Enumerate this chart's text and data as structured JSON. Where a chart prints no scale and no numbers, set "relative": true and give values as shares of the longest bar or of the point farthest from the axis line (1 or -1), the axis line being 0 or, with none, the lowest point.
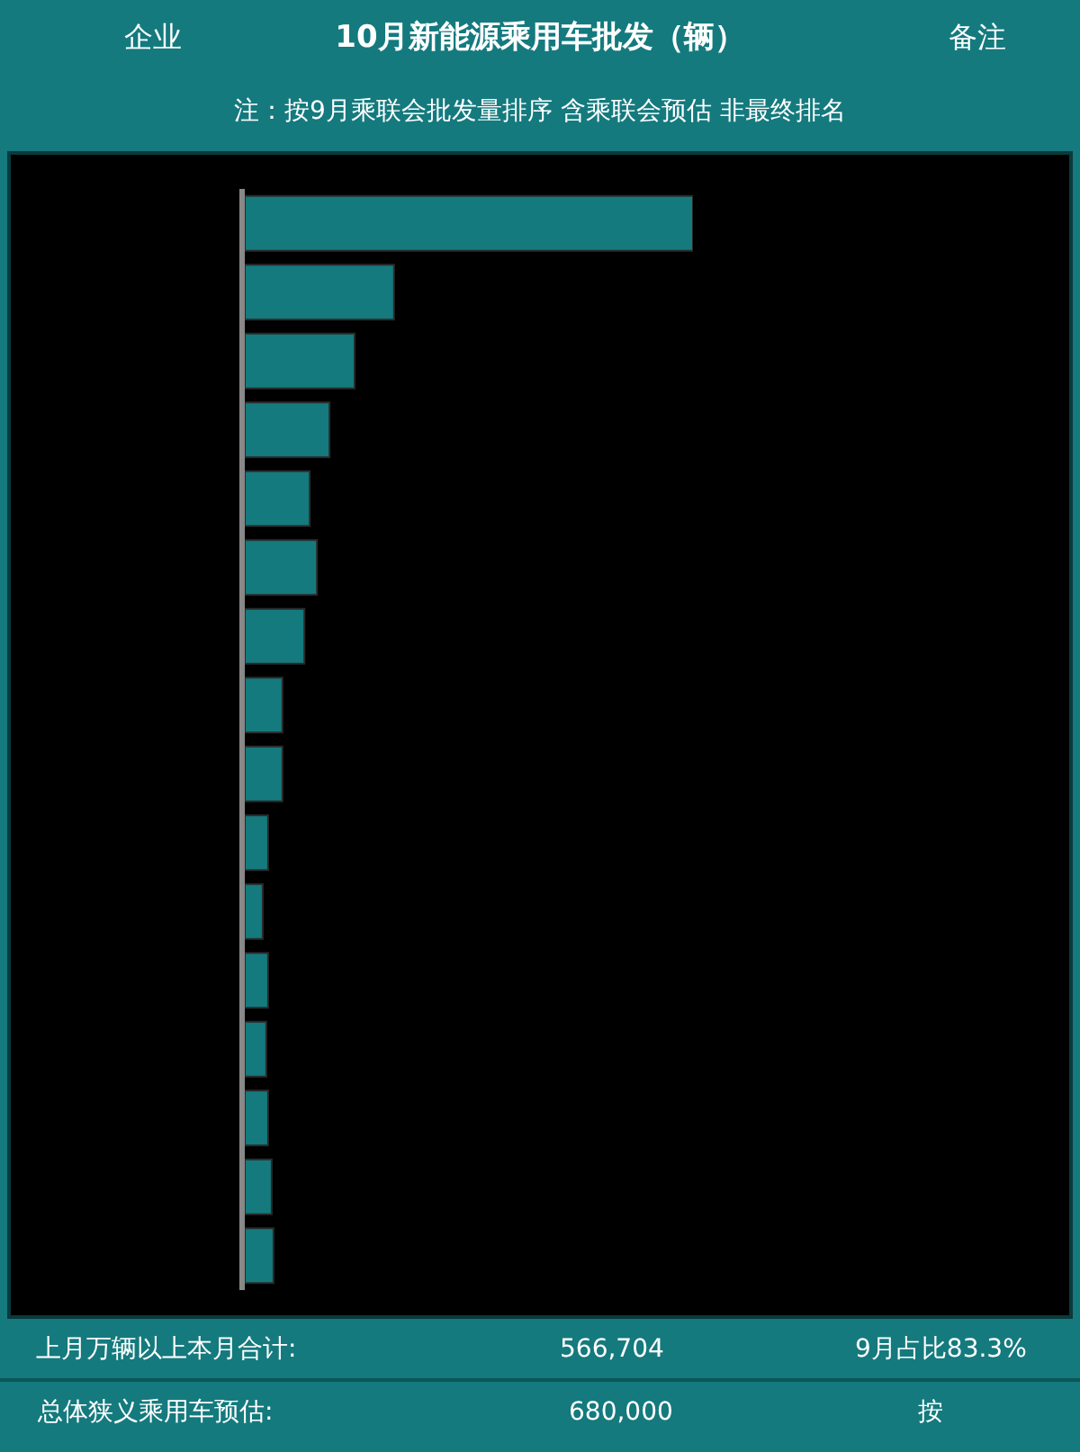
{
  "chart_data": {
    "type": "bar",
    "orientation": "horizontal",
    "relative": true,
    "title": "10月新能源乘用车批发（辆）",
    "subtitle": "注：按9月乘联会批发量排序 含乘联会预估 非最终排名",
    "categories": [
      null,
      null,
      null,
      null,
      null,
      null,
      null,
      null,
      null,
      null,
      null,
      null,
      null,
      null,
      null,
      null
    ],
    "values": [
      1,
      0.333,
      0.245,
      0.189,
      0.145,
      0.161,
      0.133,
      0.084,
      0.084,
      0.052,
      0.04,
      0.052,
      0.048,
      0.052,
      0.06,
      0.064
    ],
    "color": "#147a7e",
    "annotations": [
      "企业",
      "备注",
      "上月万辆以上本月合计:",
      "566,704",
      "9月占比83.3%",
      "总体狭义乘用车预估:",
      "680,000",
      "按"
    ],
    "legend": false
  }
}
